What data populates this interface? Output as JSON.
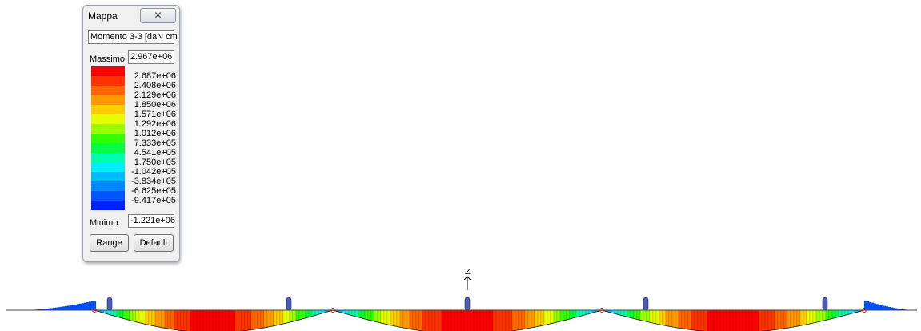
{
  "palette": {
    "title": "Mappa",
    "close_glyph": "✕",
    "quantity": "Momento 3-3 [daN cm",
    "max_label": "Massimo",
    "max_value": "2.967e+06",
    "min_label": "Minimo",
    "min_value": "-1.221e+06",
    "ticks": [
      "2.687e+06",
      "2.408e+06",
      "2.129e+06",
      "1.850e+06",
      "1.571e+06",
      "1.292e+06",
      "1.012e+06",
      "7.333e+05",
      "4.541e+05",
      "1.750e+05",
      "-1.042e+05",
      "-3.834e+05",
      "-6.625e+05",
      "-9.417e+05"
    ],
    "colors": [
      "#ff0000",
      "#ff3300",
      "#ff6600",
      "#ff9900",
      "#ffcc00",
      "#e6ff00",
      "#99ff00",
      "#33ff00",
      "#00ff44",
      "#00ffaa",
      "#00eeff",
      "#00bbff",
      "#0088ff",
      "#0055ff",
      "#0022ff"
    ],
    "range_label": "Range",
    "default_label": "Default"
  },
  "model": {
    "axis_label": "Z",
    "supports": 5
  }
}
